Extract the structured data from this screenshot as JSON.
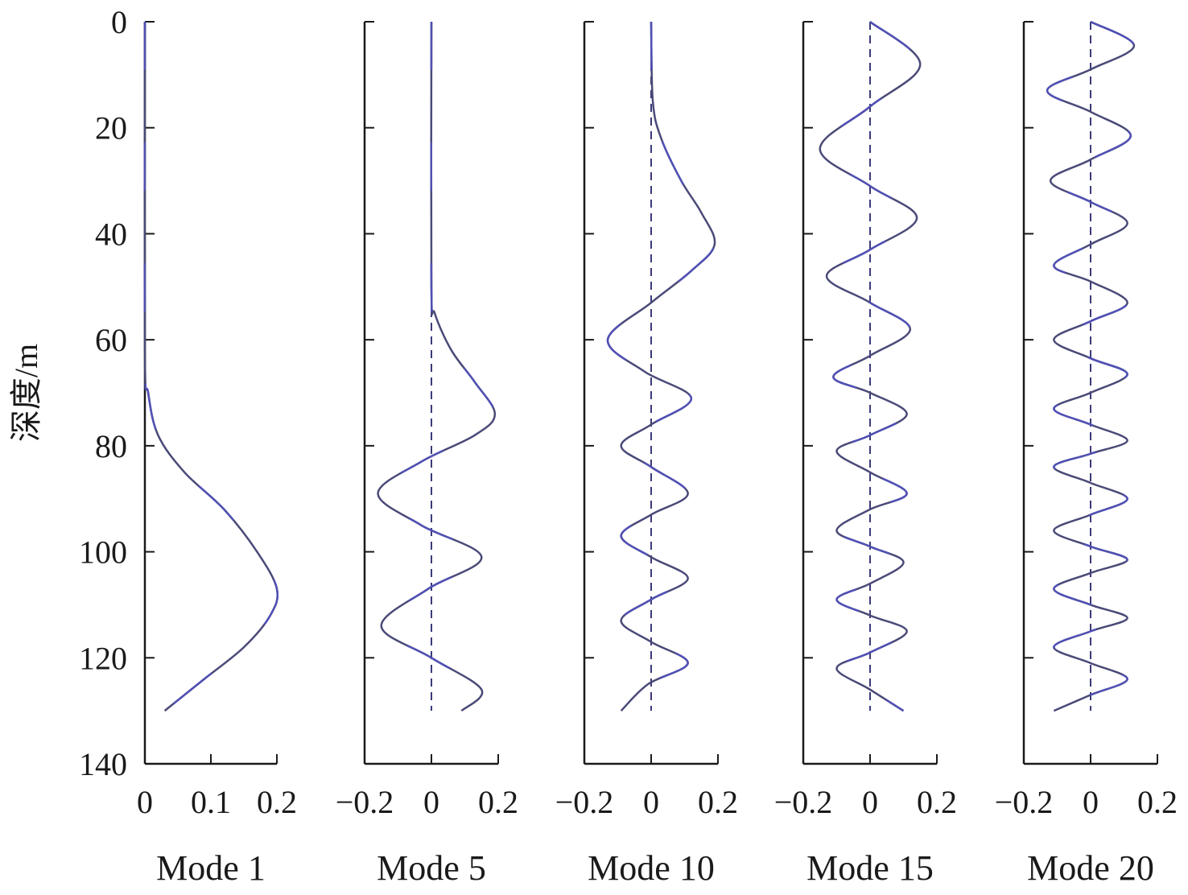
{
  "chart_data": {
    "type": "line",
    "ylabel": "深度/m",
    "y_inverted": true,
    "ylim": [
      0,
      140
    ],
    "yticks": [
      0,
      20,
      40,
      60,
      80,
      100,
      120,
      140
    ],
    "colors": {
      "curve": "#4a4a78",
      "curve_highlight": "#5050b4",
      "zero_line": "#3b3b7a",
      "axis": "#1a1a1a"
    },
    "panels": [
      {
        "title": "Mode 1",
        "xlim": [
          0,
          0.2
        ],
        "xticks": [
          0,
          0.1,
          0.2
        ],
        "xtick_labels": [
          "0",
          "0.1",
          "0.2"
        ],
        "zero_dashed": false,
        "series": [
          {
            "depth": [
              0,
              62,
              70,
              78,
              85,
              92,
              100,
              107,
              112,
              118,
              124,
              130
            ],
            "value": [
              0,
              0,
              0.005,
              0.02,
              0.06,
              0.12,
              0.17,
              0.2,
              0.19,
              0.15,
              0.09,
              0.03
            ]
          }
        ]
      },
      {
        "title": "Mode 5",
        "xlim": [
          -0.2,
          0.2
        ],
        "xticks": [
          -0.2,
          0,
          0.2
        ],
        "xtick_labels": [
          "−0.2",
          "0",
          "0.2"
        ],
        "zero_dashed": true,
        "series": [
          {
            "depth": [
              0,
              50,
              55,
              62,
              68,
              74,
              78,
              83,
              89,
              95,
              101,
              107,
              114,
              120,
              126,
              130
            ],
            "value": [
              0,
              0,
              0.01,
              0.06,
              0.13,
              0.19,
              0.13,
              -0.03,
              -0.16,
              -0.03,
              0.15,
              -0.01,
              -0.15,
              0.0,
              0.15,
              0.09
            ]
          }
        ]
      },
      {
        "title": "Mode 10",
        "xlim": [
          -0.2,
          0.2
        ],
        "xticks": [
          -0.2,
          0,
          0.2
        ],
        "xtick_labels": [
          "−0.2",
          "0",
          "0.2"
        ],
        "zero_dashed": true,
        "series": [
          {
            "depth": [
              0,
              15,
              22,
              30,
              36,
              42,
              47,
              53,
              60,
              66,
              71,
              76,
              80,
              84,
              89,
              93,
              97,
              101,
              105,
              109,
              113,
              117,
              121,
              125,
              130
            ],
            "value": [
              0,
              0.005,
              0.03,
              0.09,
              0.15,
              0.19,
              0.12,
              0.0,
              -0.13,
              -0.02,
              0.12,
              0.0,
              -0.09,
              0.0,
              0.11,
              0.0,
              -0.09,
              0.0,
              0.11,
              0.0,
              -0.09,
              0.0,
              0.11,
              -0.01,
              -0.09
            ]
          }
        ]
      },
      {
        "title": "Mode 15",
        "xlim": [
          -0.2,
          0.2
        ],
        "xticks": [
          -0.2,
          0,
          0.2
        ],
        "xtick_labels": [
          "−0.2",
          "0",
          "0.2"
        ],
        "zero_dashed": true,
        "series": [
          {
            "depth": [
              0,
              8,
              16,
              24,
              31,
              37,
              43,
              48,
              53,
              58,
              63,
              67,
              70,
              74,
              78,
              81,
              85,
              89,
              92,
              96,
              99,
              102,
              106,
              109,
              112,
              115,
              119,
              122,
              126,
              130
            ],
            "value": [
              0,
              0.15,
              0.0,
              -0.15,
              0.0,
              0.14,
              0.0,
              -0.13,
              0.0,
              0.12,
              0.0,
              -0.11,
              0.0,
              0.11,
              0.0,
              -0.1,
              0.0,
              0.11,
              0.0,
              -0.1,
              0.0,
              0.1,
              0.0,
              -0.1,
              0.0,
              0.11,
              0.0,
              -0.1,
              0.0,
              0.1
            ]
          }
        ]
      },
      {
        "title": "Mode 20",
        "xlim": [
          -0.2,
          0.2
        ],
        "xticks": [
          -0.2,
          0,
          0.2
        ],
        "xtick_labels": [
          "−0.2",
          "0",
          "0.2"
        ],
        "zero_dashed": true,
        "series": [
          {
            "depth": [
              0,
              4.5,
              9,
              13,
              17,
              21.5,
              26,
              30,
              34,
              38,
              42,
              46,
              49,
              53,
              56.5,
              60,
              63.5,
              66.5,
              70,
              73,
              76,
              79,
              81.5,
              84,
              87,
              90,
              93,
              96,
              99,
              101.5,
              104,
              107,
              110,
              112.5,
              115,
              118,
              121,
              124,
              127,
              130
            ],
            "value": [
              0,
              0.13,
              0.0,
              -0.13,
              0.0,
              0.12,
              0.0,
              -0.12,
              0.0,
              0.11,
              0.0,
              -0.11,
              0.0,
              0.11,
              0.0,
              -0.11,
              0.0,
              0.11,
              0.0,
              -0.11,
              0.0,
              0.11,
              0.0,
              -0.11,
              0.0,
              0.11,
              0.0,
              -0.11,
              0.0,
              0.11,
              0.0,
              -0.11,
              0.0,
              0.11,
              0.0,
              -0.11,
              0.0,
              0.11,
              0.0,
              -0.11
            ]
          }
        ]
      }
    ]
  }
}
